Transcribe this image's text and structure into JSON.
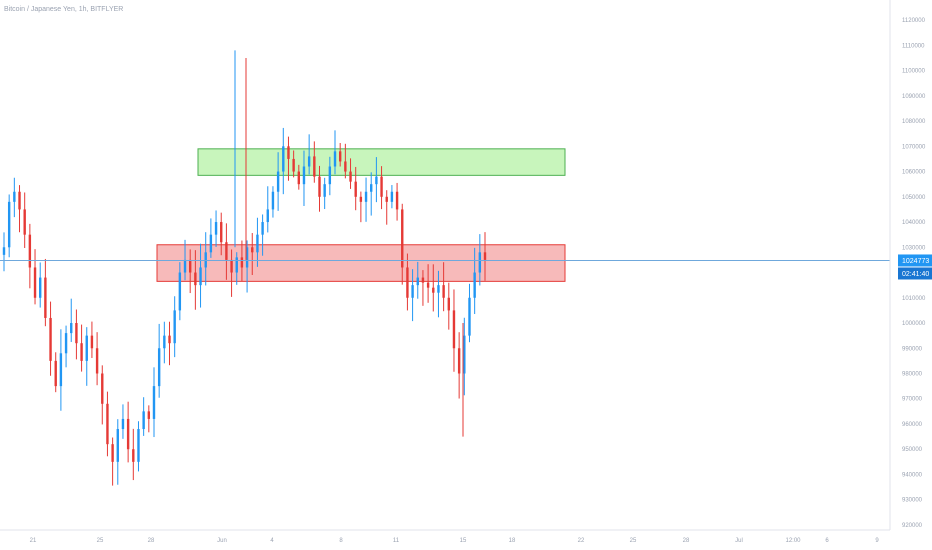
{
  "header": {
    "symbol": "Bitcoin / Japanese Yen, 1h, BITFLYER"
  },
  "colors": {
    "up": "#2196f3",
    "down": "#e53935",
    "price_line": "#6fa8dc",
    "support_zone_fill": "#f4a3a3",
    "support_zone_stroke": "#e53935",
    "resistance_zone_fill": "#b6f2a6",
    "resistance_zone_stroke": "#4caf50",
    "axis_text": "#9aa2b1",
    "tag_bg": "#2196f3"
  },
  "current": {
    "price": "1024773",
    "countdown": "02:41:40"
  },
  "chart_data": {
    "type": "candlestick",
    "title": "Bitcoin / Japanese Yen, 1h, BITFLYER",
    "y_ticks": [
      1120000,
      1110000,
      1100000,
      1090000,
      1080000,
      1070000,
      1060000,
      1050000,
      1040000,
      1030000,
      1020000,
      1010000,
      1000000,
      990000,
      980000,
      970000,
      960000,
      950000,
      940000,
      930000,
      920000
    ],
    "x_ticks": [
      "21",
      "25",
      "28",
      "Jun",
      "4",
      "8",
      "11",
      "15",
      "18",
      "22",
      "25",
      "28",
      "Jul",
      "12:00",
      "6",
      "9"
    ],
    "ylim": [
      918000,
      1124000
    ],
    "current_price": 1024773,
    "zones": [
      {
        "name": "resistance",
        "y_top": 1069000,
        "y_bottom": 1058500,
        "x_start": "Jun",
        "x_end": "21"
      },
      {
        "name": "support",
        "y_top": 1031000,
        "y_bottom": 1016500,
        "x_start": "28",
        "x_end": "21"
      }
    ],
    "candles_close_path": [
      1030000,
      1048000,
      1052000,
      1045000,
      1035000,
      1022000,
      1010000,
      1018000,
      1002000,
      985000,
      975000,
      988000,
      996000,
      1000000,
      992000,
      985000,
      995000,
      990000,
      980000,
      968000,
      952000,
      945000,
      958000,
      962000,
      950000,
      945000,
      958000,
      965000,
      962000,
      975000,
      990000,
      995000,
      992000,
      1005000,
      1020000,
      1025000,
      1020000,
      1015000,
      1022000,
      1028000,
      1035000,
      1040000,
      1032000,
      1025000,
      1020000,
      1026000,
      1022000,
      1030000,
      1028000,
      1035000,
      1040000,
      1045000,
      1052000,
      1060000,
      1070000,
      1065000,
      1060000,
      1055000,
      1062000,
      1066000,
      1058000,
      1050000,
      1055000,
      1062000,
      1068000,
      1064000,
      1060000,
      1056000,
      1050000,
      1048000,
      1052000,
      1055000,
      1058000,
      1050000,
      1048000,
      1052000,
      1045000,
      1022000,
      1010000,
      1015000,
      1018000,
      1016000,
      1014000,
      1012000,
      1015000,
      1010000,
      1005000,
      990000,
      980000,
      995000,
      1010000,
      1020000,
      1028000,
      1025000
    ]
  }
}
